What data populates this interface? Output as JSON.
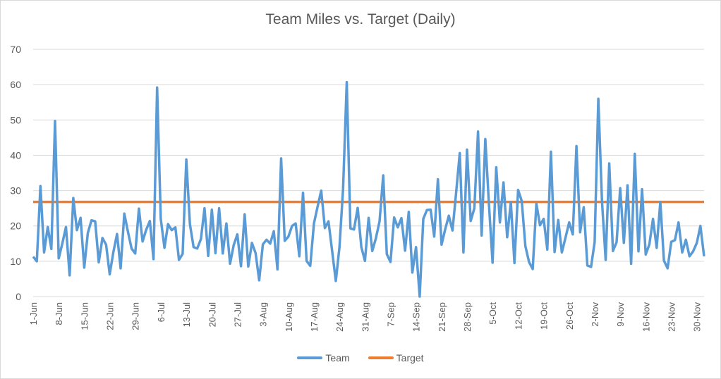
{
  "chart_data": {
    "type": "line",
    "title": "Team Miles vs. Target (Daily)",
    "xlabel": "",
    "ylabel": "",
    "ylim": [
      0,
      70
    ],
    "yticks": [
      "0",
      "10",
      "20",
      "30",
      "40",
      "50",
      "60",
      "70"
    ],
    "grid": true,
    "legend_position": "bottom",
    "xtick_labels": [
      "1-Jun",
      "8-Jun",
      "15-Jun",
      "22-Jun",
      "29-Jun",
      "6-Jul",
      "13-Jul",
      "20-Jul",
      "27-Jul",
      "3-Aug",
      "10-Aug",
      "17-Aug",
      "24-Aug",
      "31-Aug",
      "7-Sep",
      "14-Sep",
      "21-Sep",
      "28-Sep",
      "5-Oct",
      "12-Oct",
      "19-Oct",
      "26-Oct",
      "2-Nov",
      "9-Nov",
      "16-Nov",
      "23-Nov",
      "30-Nov"
    ],
    "x_start": "1-Jun",
    "x_end": "1-Dec",
    "series": [
      {
        "name": "Team",
        "color": "#5b9bd5",
        "values": [
          11.3,
          10,
          31.3,
          12.5,
          19.7,
          13.5,
          49.7,
          10.8,
          15,
          19.7,
          6,
          27.9,
          18.8,
          22.3,
          8.2,
          18,
          21.6,
          21.3,
          9.7,
          16.6,
          14.7,
          6.3,
          12.6,
          17.7,
          8,
          23.5,
          18.3,
          13.6,
          12.2,
          24.9,
          15.6,
          18.9,
          21.4,
          10.6,
          59.2,
          22,
          13.8,
          20.5,
          18.8,
          19.6,
          10.4,
          12.1,
          38.8,
          20.5,
          14,
          13.6,
          16.3,
          25,
          11.5,
          24.6,
          12.3,
          25,
          12.2,
          20.7,
          9.3,
          14.6,
          17.6,
          8.6,
          23.3,
          8.5,
          15.2,
          12.3,
          4.6,
          14.8,
          16.1,
          15,
          18.5,
          7.7,
          39.1,
          15.8,
          17,
          20,
          20.7,
          11.4,
          29.4,
          10.1,
          8.7,
          20.7,
          25.4,
          30,
          19.4,
          21.3,
          12.9,
          4.4,
          14,
          30.5,
          60.7,
          19.3,
          19,
          25.1,
          14,
          10.1,
          22.3,
          12.9,
          16.5,
          21.3,
          34.3,
          12,
          9.8,
          22.4,
          19.6,
          22.2,
          13,
          24,
          6.8,
          14,
          0,
          22,
          24.5,
          24.6,
          17,
          33.2,
          14.7,
          19,
          22.9,
          18.7,
          29.3,
          40.6,
          12.5,
          41.6,
          21.4,
          25,
          46.7,
          17.3,
          44.6,
          26,
          9.6,
          36.6,
          21,
          32.3,
          16.8,
          26.7,
          9.5,
          30.2,
          27,
          14.3,
          9.8,
          7.8,
          26.3,
          20.2,
          22,
          13.3,
          41,
          12.6,
          21.7,
          12.5,
          16.7,
          21,
          17.6,
          42.6,
          18.2,
          25.3,
          8.8,
          8.4,
          15.4,
          56,
          27,
          10.4,
          37.7,
          12.9,
          15.4,
          30.7,
          15.2,
          31.5,
          9.3,
          40.4,
          12.8,
          30.4,
          11.9,
          14.8,
          22,
          13.8,
          26.8,
          10.2,
          8,
          15.5,
          16,
          21,
          12.5,
          16.1,
          11.4,
          12.8,
          15.2,
          20,
          11.4
        ]
      },
      {
        "name": "Target",
        "color": "#ed7d31",
        "values": [
          26.8
        ],
        "constant": true
      }
    ]
  }
}
